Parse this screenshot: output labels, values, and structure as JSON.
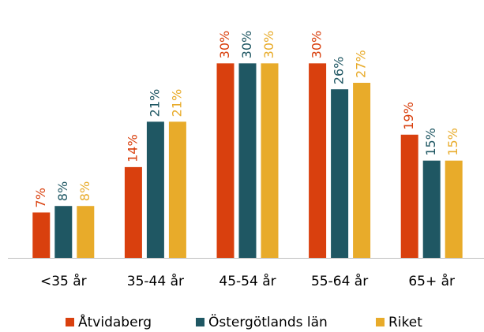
{
  "chart_data": {
    "type": "bar",
    "categories": [
      "<35 år",
      "35-44 år",
      "45-54 år",
      "55-64 år",
      "65+ år"
    ],
    "series": [
      {
        "name": "Åtvidaberg",
        "color": "#d9400e",
        "values": [
          7,
          14,
          30,
          30,
          19
        ],
        "value_labels": [
          "7%",
          "14%",
          "30%",
          "30%",
          "19%"
        ]
      },
      {
        "name": "Östergötlands län",
        "color": "#1f5763",
        "values": [
          8,
          21,
          30,
          26,
          15
        ],
        "value_labels": [
          "8%",
          "21%",
          "30%",
          "26%",
          "15%"
        ]
      },
      {
        "name": "Riket",
        "color": "#e8ab2a",
        "values": [
          8,
          21,
          30,
          27,
          15
        ],
        "value_labels": [
          "8%",
          "21%",
          "30%",
          "27%",
          "15%"
        ]
      }
    ],
    "ylim": [
      0,
      36
    ],
    "legend": "bottom"
  }
}
